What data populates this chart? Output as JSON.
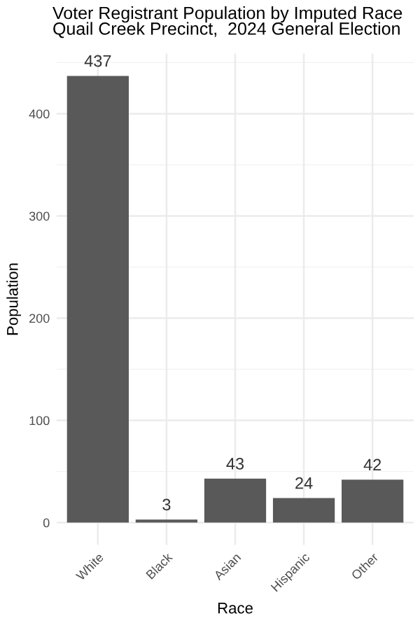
{
  "chart_data": {
    "type": "bar",
    "title": "Voter Registrant Population by Imputed Race\nQuail Creek Precinct,  2024 General Election",
    "xlabel": "Race",
    "ylabel": "Population",
    "categories": [
      "White",
      "Black",
      "Asian",
      "Hispanic",
      "Other"
    ],
    "values": [
      437,
      3,
      43,
      24,
      42
    ],
    "color": "#595959",
    "data_labels": true,
    "ylim": [
      -21.85,
      458.85
    ],
    "yticks": [
      0,
      100,
      200,
      300,
      400
    ],
    "grid": true
  }
}
